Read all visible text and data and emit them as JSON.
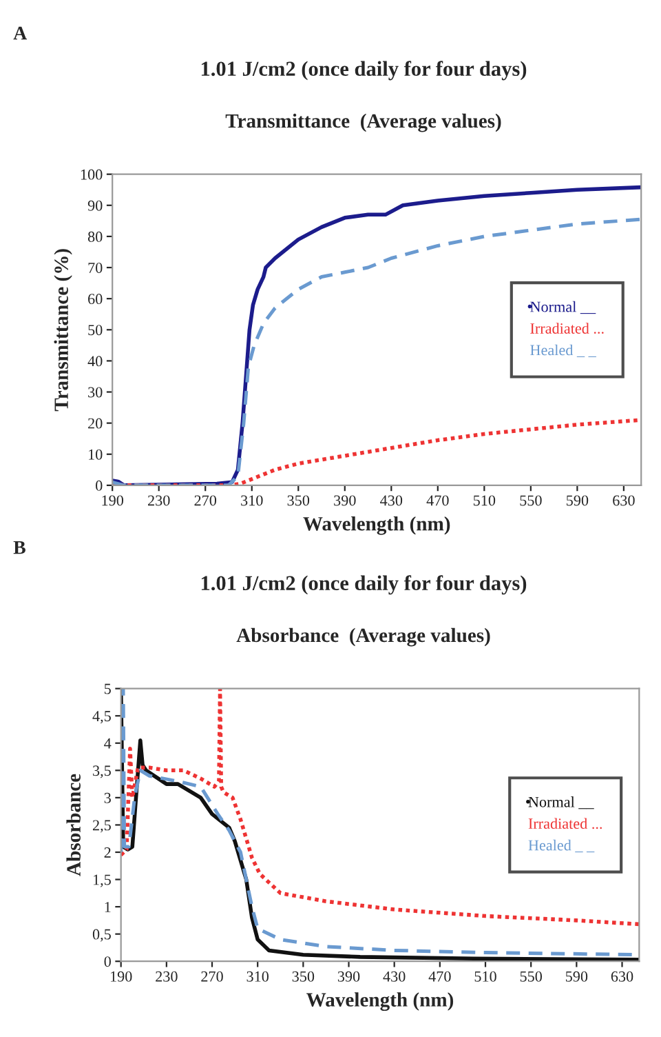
{
  "chart_data": [
    {
      "type": "line",
      "title": "1.01 J/cm2 (once daily for four days)",
      "subtitle": "Transmittance  (Average values)",
      "xlabel": "Wavelength (nm)",
      "ylabel": "Transmittance (%)",
      "annotations": [
        "A"
      ],
      "xlim": [
        190,
        645
      ],
      "xticks": [
        190,
        230,
        270,
        310,
        350,
        390,
        430,
        470,
        510,
        550,
        590,
        630
      ],
      "ylim": [
        0,
        100
      ],
      "yticks": [
        0,
        10,
        20,
        30,
        40,
        50,
        60,
        70,
        80,
        90,
        100
      ],
      "grid": false,
      "legend": "center right",
      "series": [
        {
          "name": "Normal __",
          "color": "#1c1c8c",
          "line_style": "solid",
          "x": [
            190,
            195,
            200,
            280,
            293,
            298,
            302,
            305,
            308,
            311,
            315,
            320,
            322,
            330,
            350,
            370,
            390,
            410,
            425,
            440,
            470,
            510,
            550,
            590,
            645
          ],
          "values": [
            1.5,
            1.2,
            0,
            0.5,
            1,
            5,
            20,
            35,
            50,
            58,
            63,
            67,
            70,
            73,
            79,
            83,
            86,
            87,
            87,
            90,
            91.5,
            93,
            94,
            95,
            95.8
          ]
        },
        {
          "name": "Irradiated ...",
          "color": "#ee3333",
          "line_style": "dotted",
          "x": [
            190,
            200,
            290,
            300,
            310,
            330,
            350,
            390,
            430,
            470,
            510,
            550,
            590,
            645
          ],
          "values": [
            0.5,
            0,
            0,
            0.5,
            2,
            5,
            7,
            9.5,
            12,
            14.5,
            16.5,
            18,
            19.5,
            21
          ]
        },
        {
          "name": "Healed _ _",
          "color": "#6a9ad0",
          "line_style": "dashed",
          "x": [
            190,
            200,
            290,
            298,
            303,
            307,
            312,
            320,
            330,
            350,
            370,
            390,
            410,
            430,
            470,
            510,
            550,
            590,
            645
          ],
          "values": [
            1,
            0,
            0,
            3,
            20,
            38,
            45,
            52,
            57,
            63,
            67,
            68.5,
            70,
            73,
            77,
            80,
            82,
            84,
            85.5
          ]
        }
      ]
    },
    {
      "type": "line",
      "title": "1.01 J/cm2 (once daily for four days)",
      "subtitle": "Absorbance  (Average values)",
      "xlabel": "Wavelength (nm)",
      "ylabel": "Absorbance",
      "annotations": [
        "B"
      ],
      "xlim": [
        190,
        645
      ],
      "xticks": [
        190,
        230,
        270,
        310,
        350,
        390,
        430,
        470,
        510,
        550,
        590,
        630
      ],
      "ylim": [
        0,
        5
      ],
      "yticks": [
        0,
        {
          "value": 0.5,
          "label": "0,5"
        },
        1,
        {
          "value": 1.5,
          "label": "1,5"
        },
        2,
        {
          "value": 2.5,
          "label": "2,5"
        },
        3,
        {
          "value": 3.5,
          "label": "3,5"
        },
        4,
        {
          "value": 4.5,
          "label": "4,5"
        },
        5
      ],
      "grid": false,
      "legend": "center right",
      "series": [
        {
          "name": "Normal __",
          "color": "#111111",
          "line_style": "solid",
          "x": [
            190,
            192,
            196,
            200,
            205,
            207,
            209,
            212,
            230,
            240,
            260,
            270,
            285,
            290,
            300,
            305,
            310,
            320,
            350,
            400,
            500,
            645
          ],
          "values": [
            5,
            2.1,
            2.05,
            2.1,
            3.5,
            4.05,
            3.6,
            3.5,
            3.25,
            3.25,
            3.0,
            2.7,
            2.45,
            2.2,
            1.5,
            0.8,
            0.4,
            0.2,
            0.12,
            0.08,
            0.05,
            0.03
          ]
        },
        {
          "name": "Irradiated ...",
          "color": "#ee3333",
          "line_style": "dotted",
          "x": [
            190,
            195,
            198,
            200,
            205,
            215,
            230,
            245,
            260,
            272,
            276,
            277,
            278,
            280,
            288,
            295,
            305,
            312,
            330,
            370,
            430,
            510,
            590,
            645
          ],
          "values": [
            1.95,
            2.05,
            3.9,
            3.0,
            3.55,
            3.55,
            3.5,
            3.5,
            3.35,
            3.2,
            3.3,
            5,
            3.2,
            3.1,
            3.0,
            2.6,
            1.9,
            1.6,
            1.25,
            1.1,
            0.95,
            0.83,
            0.75,
            0.68
          ]
        },
        {
          "name": "Healed _ _",
          "color": "#6a9ad0",
          "line_style": "dashed",
          "x": [
            190,
            192,
            193,
            197,
            202,
            207,
            215,
            240,
            260,
            275,
            285,
            295,
            305,
            310,
            330,
            370,
            430,
            510,
            645
          ],
          "values": [
            2.0,
            5,
            2.1,
            2.1,
            3.0,
            3.5,
            3.4,
            3.3,
            3.2,
            2.7,
            2.4,
            2.0,
            1.0,
            0.6,
            0.4,
            0.27,
            0.2,
            0.16,
            0.12
          ]
        }
      ]
    }
  ]
}
